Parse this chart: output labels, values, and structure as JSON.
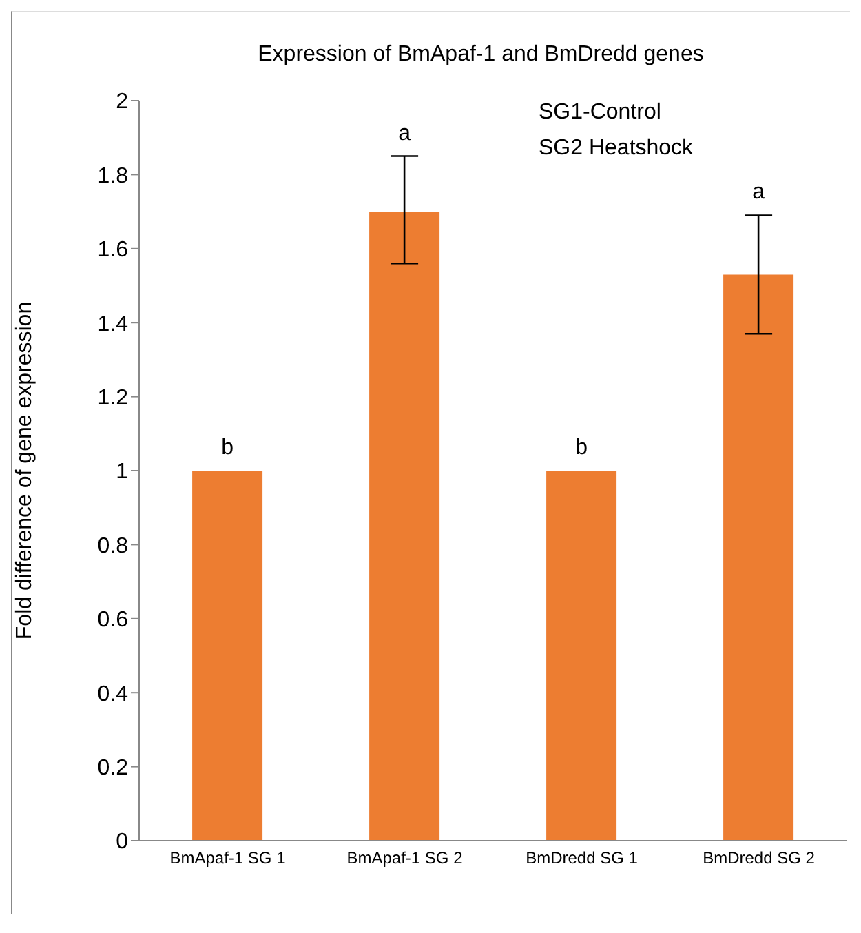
{
  "chart_data": {
    "type": "bar",
    "title": "Expression of BmApaf-1 and BmDredd genes",
    "ylabel": "Fold difference of gene expression",
    "categories": [
      "BmApaf-1 SG 1",
      "BmApaf-1 SG 2",
      "BmDredd SG 1",
      "BmDredd SG 2"
    ],
    "values": [
      1,
      1.7,
      1,
      1.53
    ],
    "color": "#ed7d31",
    "errors": [
      0,
      [
        1.56,
        1.85
      ],
      0,
      [
        1.37,
        1.69
      ]
    ],
    "ylim": [
      0,
      2
    ],
    "yticks": [
      0,
      0.2,
      0.4,
      0.6,
      0.8,
      1,
      1.2,
      1.4,
      1.6,
      1.8,
      2
    ],
    "grid": false,
    "value_labels": [
      "b",
      "a",
      "b",
      "a"
    ],
    "annotations": [
      "SG1-Control",
      "SG2 Heatshock"
    ]
  }
}
